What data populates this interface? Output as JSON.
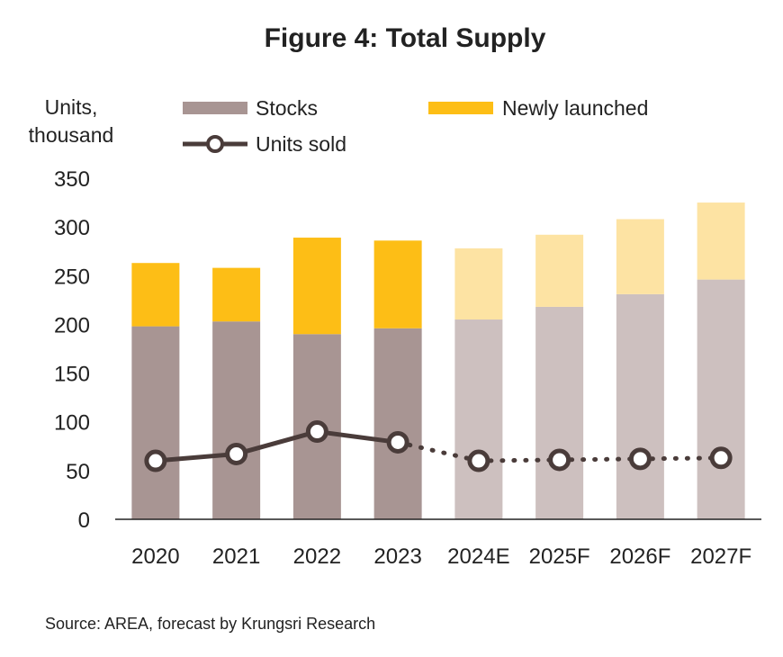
{
  "chart_data": {
    "type": "bar",
    "stacked": true,
    "title": "Figure 4: Total Supply",
    "ylabel_lines": [
      "Units,",
      "thousand"
    ],
    "categories": [
      "2020",
      "2021",
      "2022",
      "2023",
      "2024E",
      "2025F",
      "2026F",
      "2027F"
    ],
    "forecast_from_index": 4,
    "ylim": [
      0,
      350
    ],
    "yticks": [
      0,
      50,
      100,
      150,
      200,
      250,
      300,
      350
    ],
    "series": [
      {
        "name": "Stocks",
        "kind": "bar",
        "values": [
          198,
          203,
          190,
          196,
          205,
          218,
          231,
          246
        ],
        "color": "#a89593",
        "forecast_color": "#cdc0bf"
      },
      {
        "name": "Newly launched",
        "kind": "bar",
        "values": [
          65,
          55,
          99,
          90,
          73,
          74,
          77,
          79
        ],
        "color": "#fdbe16",
        "forecast_color": "#fde3a3"
      },
      {
        "name": "Units sold",
        "kind": "line",
        "values": [
          60,
          67,
          90,
          79,
          60,
          61,
          62,
          63
        ],
        "color": "#4a3c3a"
      }
    ],
    "legend_position": "top",
    "grid": false
  },
  "source_text": "Source: AREA, forecast by Krungsri Research"
}
